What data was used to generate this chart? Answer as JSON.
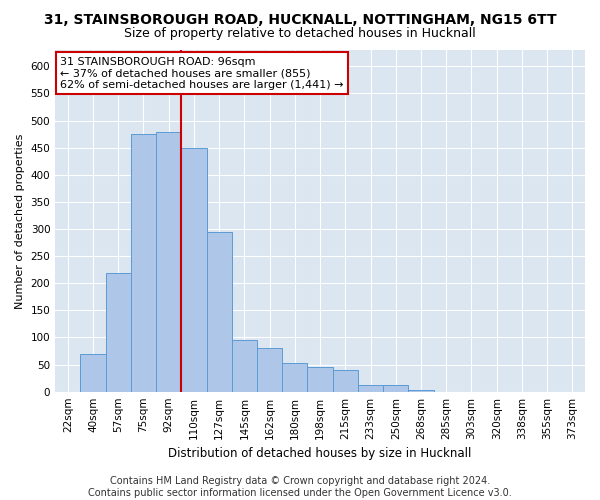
{
  "title": "31, STAINSBOROUGH ROAD, HUCKNALL, NOTTINGHAM, NG15 6TT",
  "subtitle": "Size of property relative to detached houses in Hucknall",
  "xlabel": "Distribution of detached houses by size in Hucknall",
  "ylabel": "Number of detached properties",
  "bar_labels": [
    "22sqm",
    "40sqm",
    "57sqm",
    "75sqm",
    "92sqm",
    "110sqm",
    "127sqm",
    "145sqm",
    "162sqm",
    "180sqm",
    "198sqm",
    "215sqm",
    "233sqm",
    "250sqm",
    "268sqm",
    "285sqm",
    "303sqm",
    "320sqm",
    "338sqm",
    "355sqm",
    "373sqm"
  ],
  "bar_values": [
    0,
    70,
    218,
    475,
    478,
    450,
    295,
    95,
    80,
    53,
    46,
    40,
    12,
    12,
    4,
    0,
    0,
    0,
    0,
    0,
    0
  ],
  "bar_color": "#aec6e8",
  "bar_edge_color": "#5b9bd5",
  "vline_x_index": 4.5,
  "vline_color": "#cc0000",
  "annotation_text": "31 STAINSBOROUGH ROAD: 96sqm\n← 37% of detached houses are smaller (855)\n62% of semi-detached houses are larger (1,441) →",
  "annotation_box_facecolor": "#ffffff",
  "annotation_box_edgecolor": "#cc0000",
  "ylim": [
    0,
    630
  ],
  "yticks": [
    0,
    50,
    100,
    150,
    200,
    250,
    300,
    350,
    400,
    450,
    500,
    550,
    600
  ],
  "plot_bg_color": "#dce6f1",
  "title_fontsize": 10,
  "subtitle_fontsize": 9,
  "xlabel_fontsize": 8.5,
  "ylabel_fontsize": 8,
  "tick_fontsize": 7.5,
  "annotation_fontsize": 8,
  "footer": "Contains HM Land Registry data © Crown copyright and database right 2024.\nContains public sector information licensed under the Open Government Licence v3.0.",
  "footer_fontsize": 7
}
